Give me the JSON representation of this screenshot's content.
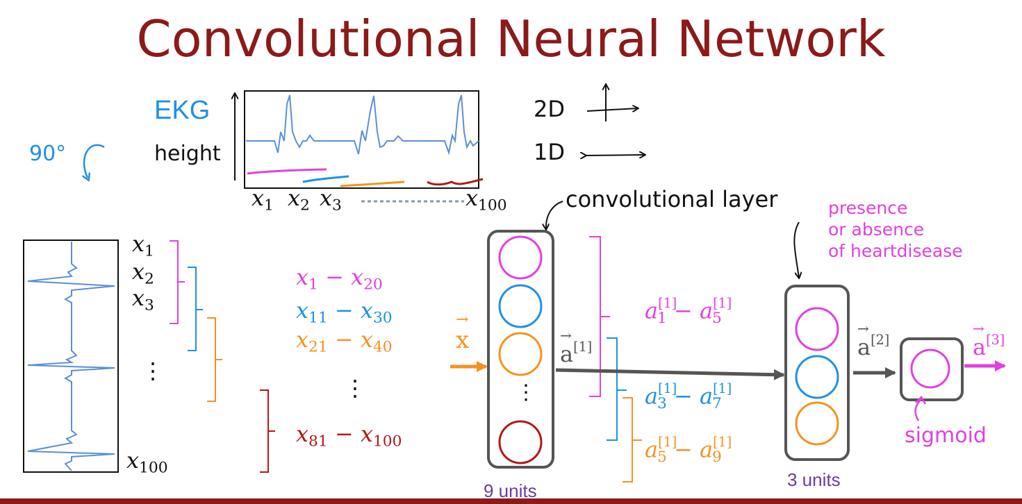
{
  "title": "Convolutional Neural Network",
  "ekg_label": "EKG",
  "height_label": "height",
  "rotate_label": "90°",
  "dims": {
    "two_d": "2D",
    "one_d": "1D"
  },
  "x_labels_top": {
    "x1": "x",
    "x1_sub": "1",
    "x2": "x",
    "x2_sub": "2",
    "x3": "x",
    "x3_sub": "3",
    "x100": "x",
    "x100_sub": "100"
  },
  "x_labels_left": [
    {
      "base": "x",
      "sub": "1"
    },
    {
      "base": "x",
      "sub": "2"
    },
    {
      "base": "x",
      "sub": "3"
    },
    {
      "base": "x",
      "sub": "100"
    }
  ],
  "vdots": "⋮",
  "ranges": [
    {
      "a": "x",
      "a_sub": "1",
      "dash": "−",
      "b": "x",
      "b_sub": "20",
      "color": "#e040e0"
    },
    {
      "a": "x",
      "a_sub": "11",
      "dash": "−",
      "b": "x",
      "b_sub": "30",
      "color": "#1e90e8"
    },
    {
      "a": "x",
      "a_sub": "21",
      "dash": "−",
      "b": "x",
      "b_sub": "40",
      "color": "#f5921e"
    },
    {
      "a": "x",
      "a_sub": "81",
      "dash": "−",
      "b": "x",
      "b_sub": "100",
      "color": "#b01818"
    }
  ],
  "input_label": "x",
  "conv_layer_label": "convolutional layer",
  "activations": [
    {
      "a": "a",
      "a_sub": "1",
      "sup": "[1]",
      "dash": "−",
      "b": "a",
      "b_sub": "5",
      "color": "#e040e0"
    },
    {
      "a": "a",
      "a_sub": "3",
      "sup": "[1]",
      "dash": "−",
      "b": "a",
      "b_sub": "7",
      "color": "#1e90e8"
    },
    {
      "a": "a",
      "a_sub": "5",
      "sup": "[1]",
      "dash": "−",
      "b": "a",
      "b_sub": "9",
      "color": "#f5921e"
    }
  ],
  "a1_label": {
    "base": "a",
    "sup": "[1]"
  },
  "a2_label": {
    "base": "a",
    "sup": "[2]"
  },
  "a3_label": {
    "base": "a",
    "sup": "[3]"
  },
  "units_9": "9 units",
  "units_3": "3 units",
  "presence_lines": [
    "presence",
    "or absence",
    "of heartdisease"
  ],
  "sigmoid_label": "sigmoid",
  "colors": {
    "title": "#8b1a1a",
    "magenta": "#e040e0",
    "blue": "#1e90e8",
    "orange": "#f5921e",
    "darkred": "#b01818",
    "gray": "#555555",
    "purple": "#6a3d9a"
  }
}
